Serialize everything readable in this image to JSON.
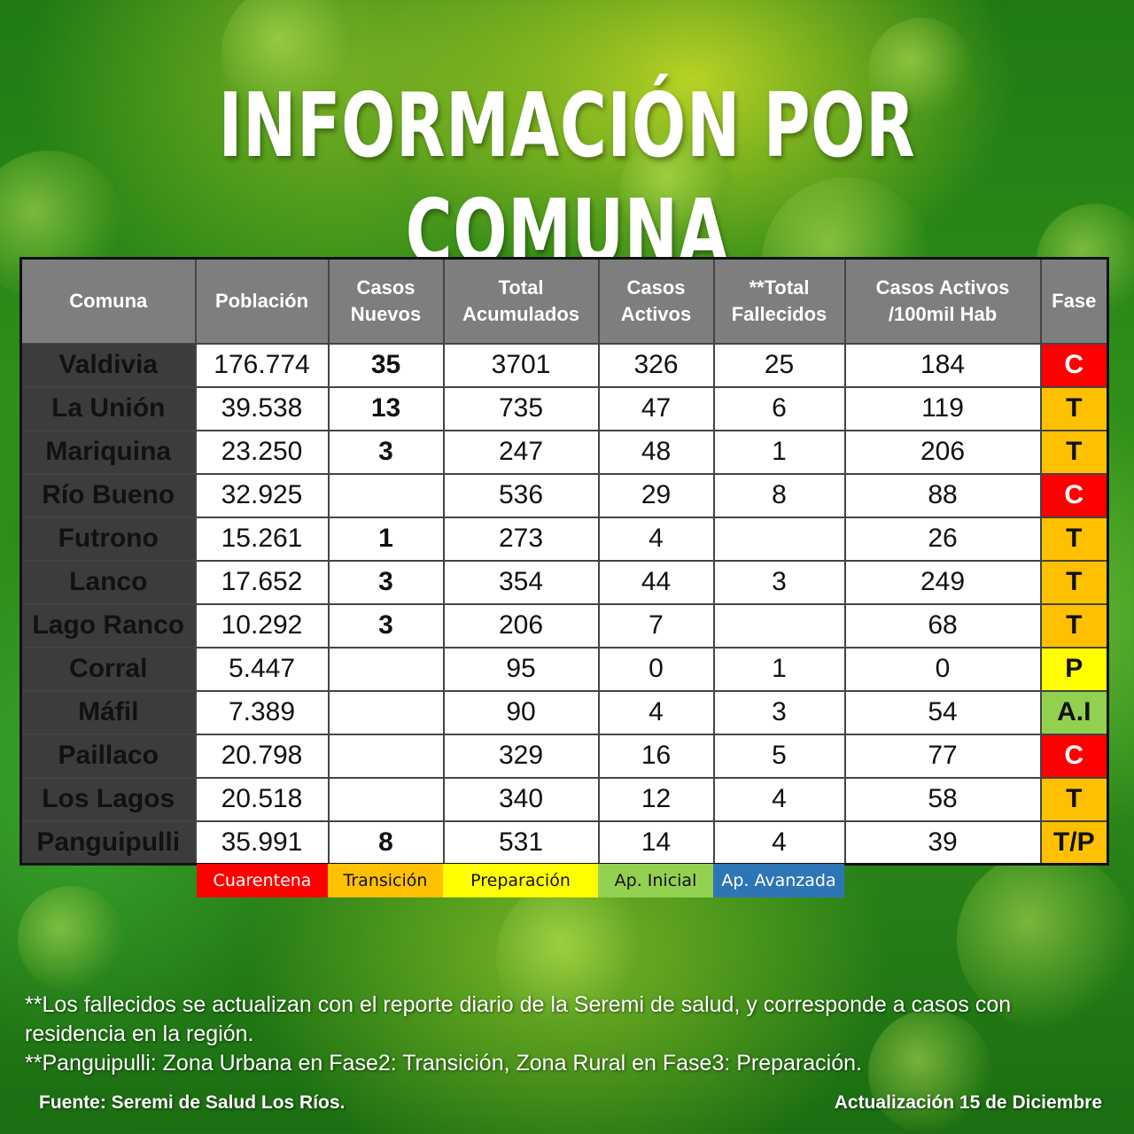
{
  "title": "INFORMACIÓN POR COMUNA",
  "table": {
    "headers": [
      {
        "line1": "Comuna",
        "line2": ""
      },
      {
        "line1": "Población",
        "line2": ""
      },
      {
        "line1": "Casos",
        "line2": "Nuevos"
      },
      {
        "line1": "Total",
        "line2": "Acumulados"
      },
      {
        "line1": "Casos",
        "line2": "Activos"
      },
      {
        "line1": "**Total",
        "line2": "Fallecidos"
      },
      {
        "line1": "Casos Activos",
        "line2": "/100mil Hab"
      },
      {
        "line1": "Fase",
        "line2": ""
      }
    ],
    "rows": [
      {
        "comuna": "Valdivia",
        "poblacion": "176.774",
        "nuevos": "35",
        "acumulados": "3701",
        "activos": "326",
        "fallecidos": "25",
        "tasa": "184",
        "fase": "C"
      },
      {
        "comuna": "La Unión",
        "poblacion": "39.538",
        "nuevos": "13",
        "acumulados": "735",
        "activos": "47",
        "fallecidos": "6",
        "tasa": "119",
        "fase": "T"
      },
      {
        "comuna": "Mariquina",
        "poblacion": "23.250",
        "nuevos": "3",
        "acumulados": "247",
        "activos": "48",
        "fallecidos": "1",
        "tasa": "206",
        "fase": "T"
      },
      {
        "comuna": "Río Bueno",
        "poblacion": "32.925",
        "nuevos": "",
        "acumulados": "536",
        "activos": "29",
        "fallecidos": "8",
        "tasa": "88",
        "fase": "C"
      },
      {
        "comuna": "Futrono",
        "poblacion": "15.261",
        "nuevos": "1",
        "acumulados": "273",
        "activos": "4",
        "fallecidos": "",
        "tasa": "26",
        "fase": "T"
      },
      {
        "comuna": "Lanco",
        "poblacion": "17.652",
        "nuevos": "3",
        "acumulados": "354",
        "activos": "44",
        "fallecidos": "3",
        "tasa": "249",
        "fase": "T"
      },
      {
        "comuna": "Lago Ranco",
        "poblacion": "10.292",
        "nuevos": "3",
        "acumulados": "206",
        "activos": "7",
        "fallecidos": "",
        "tasa": "68",
        "fase": "T"
      },
      {
        "comuna": "Corral",
        "poblacion": "5.447",
        "nuevos": "",
        "acumulados": "95",
        "activos": "0",
        "fallecidos": "1",
        "tasa": "0",
        "fase": "P"
      },
      {
        "comuna": "Máfil",
        "poblacion": "7.389",
        "nuevos": "",
        "acumulados": "90",
        "activos": "4",
        "fallecidos": "3",
        "tasa": "54",
        "fase": "A.I"
      },
      {
        "comuna": "Paillaco",
        "poblacion": "20.798",
        "nuevos": "",
        "acumulados": "329",
        "activos": "16",
        "fallecidos": "5",
        "tasa": "77",
        "fase": "C"
      },
      {
        "comuna": "Los Lagos",
        "poblacion": "20.518",
        "nuevos": "",
        "acumulados": "340",
        "activos": "12",
        "fallecidos": "4",
        "tasa": "58",
        "fase": "T"
      },
      {
        "comuna": "Panguipulli",
        "poblacion": "35.991",
        "nuevos": "8",
        "acumulados": "531",
        "activos": "14",
        "fallecidos": "4",
        "tasa": "39",
        "fase": "T/P"
      }
    ]
  },
  "phase_colors": {
    "C": "#ff0000",
    "T": "#ffc000",
    "P": "#ffff00",
    "A.I": "#92d050",
    "T/P": "#ffc000"
  },
  "legend": [
    {
      "label": "Cuarentena",
      "color": "#ff0000",
      "text_color": "#ffffff"
    },
    {
      "label": "Transición",
      "color": "#ffc000",
      "text_color": "#111111"
    },
    {
      "label": "Preparación",
      "color": "#ffff00",
      "text_color": "#111111"
    },
    {
      "label": "Ap. Inicial",
      "color": "#92d050",
      "text_color": "#111111"
    },
    {
      "label": "Ap. Avanzada",
      "color": "#2e75b6",
      "text_color": "#ffffff"
    }
  ],
  "notes": {
    "line1": "**Los fallecidos se actualizan con el reporte diario de la Seremi de salud, y corresponde a casos con residencia en la región.",
    "line2": "**Panguipulli: Zona Urbana en Fase2: Transición, Zona Rural en Fase3: Preparación."
  },
  "footer": {
    "source": "Fuente: Seremi de Salud Los Ríos.",
    "update": "Actualización 15 de Diciembre"
  }
}
